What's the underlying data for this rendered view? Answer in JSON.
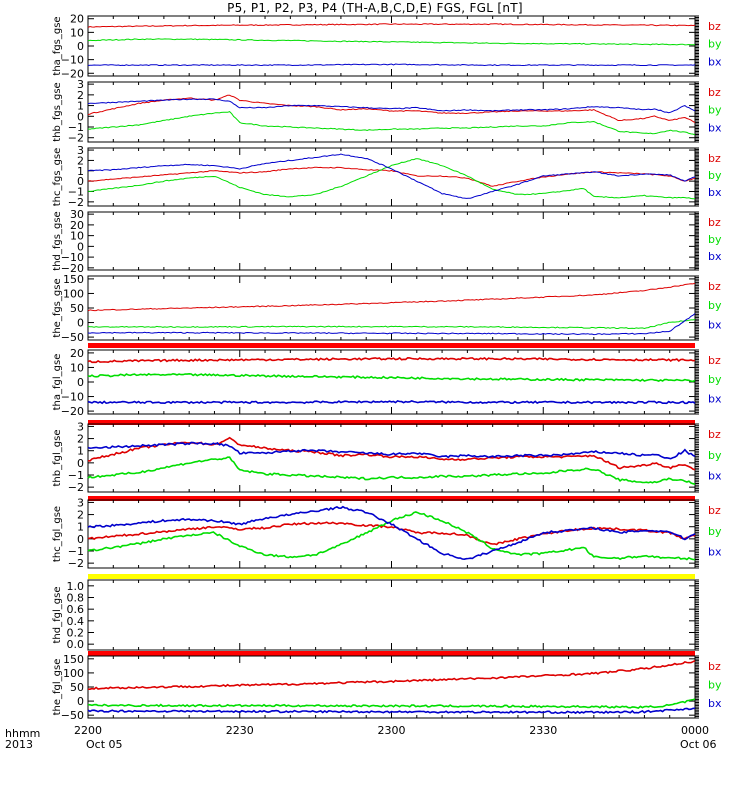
{
  "title": "P5, P1, P2, P3, P4 (TH-A,B,C,D,E) FGS, FGL [nT]",
  "footer": {
    "row1_label": "hhmm",
    "row2_label": "2013",
    "date_start": "Oct 05",
    "date_end": "Oct 06"
  },
  "colors": {
    "bx": "#0000cc",
    "by": "#00dd00",
    "bz": "#dd0000",
    "bar_red": "#ff0000",
    "bar_yellow": "#ffff00"
  },
  "chart_data": {
    "type": "line",
    "x_tick_labels": [
      "2200",
      "2230",
      "2300",
      "2330",
      "0000"
    ],
    "xlim": [
      "2013-10-05 22:00",
      "2013-10-06 00:00"
    ],
    "panels": [
      {
        "ylabel": "tha_fgs_gse",
        "ylim": [
          -22,
          22
        ],
        "ytick_labels": [
          "20",
          "10",
          "0",
          "−10",
          "−20"
        ],
        "ytick_values": [
          20,
          10,
          0,
          -10,
          -20
        ],
        "legend": [
          "bz",
          "by",
          "bx"
        ],
        "x": [
          0,
          10,
          20,
          40,
          60,
          80,
          100,
          120
        ],
        "series": [
          {
            "name": "bz",
            "color": "#dd0000",
            "values": [
              14,
              14.5,
              15,
              15.5,
              16,
              16,
              15.5,
              15
            ]
          },
          {
            "name": "by",
            "color": "#00dd00",
            "values": [
              4,
              5,
              5,
              4,
              3,
              2,
              1.5,
              1
            ]
          },
          {
            "name": "bx",
            "color": "#0000cc",
            "values": [
              -14,
              -14,
              -14,
              -14,
              -13.5,
              -14,
              -14,
              -14
            ]
          }
        ]
      },
      {
        "ylabel": "thb_fgs_gse",
        "ylim": [
          -2.4,
          3.2
        ],
        "ytick_labels": [
          "3",
          "2",
          "1",
          "0",
          "−1",
          "−2"
        ],
        "ytick_values": [
          3,
          2,
          1,
          0,
          -1,
          -2
        ],
        "legend": [
          "bz",
          "by",
          "bx"
        ],
        "x": [
          0,
          5,
          10,
          15,
          20,
          25,
          28,
          30,
          35,
          40,
          45,
          50,
          55,
          60,
          65,
          70,
          75,
          80,
          85,
          90,
          95,
          100,
          105,
          110,
          112,
          115,
          118,
          120
        ],
        "series": [
          {
            "name": "bz",
            "color": "#dd0000",
            "values": [
              0.2,
              0.7,
              1.2,
              1.5,
              1.7,
              1.5,
              2.0,
              1.5,
              1.2,
              1.0,
              0.9,
              0.6,
              0.7,
              0.5,
              0.5,
              0.3,
              0.3,
              0.4,
              0.5,
              0.5,
              0.5,
              0.6,
              -0.4,
              -0.2,
              0.0,
              -0.4,
              -0.1,
              -0.6
            ]
          },
          {
            "name": "by",
            "color": "#00dd00",
            "values": [
              -1.2,
              -1.0,
              -0.8,
              -0.4,
              0,
              0.3,
              0.4,
              -0.6,
              -0.9,
              -1.0,
              -1.1,
              -1.2,
              -1.3,
              -1.2,
              -1.2,
              -1.1,
              -1.1,
              -1.0,
              -0.9,
              -0.9,
              -0.6,
              -0.5,
              -1.4,
              -1.6,
              -1.6,
              -1.3,
              -1.5,
              -1.7
            ]
          },
          {
            "name": "bx",
            "color": "#0000cc",
            "values": [
              1.2,
              1.3,
              1.4,
              1.5,
              1.6,
              1.6,
              1.4,
              0.8,
              0.8,
              1.0,
              1.0,
              0.9,
              0.8,
              0.7,
              0.8,
              0.5,
              0.6,
              0.5,
              0.6,
              0.6,
              0.7,
              0.9,
              0.8,
              0.6,
              0.7,
              0.3,
              1.0,
              0.5
            ]
          }
        ]
      },
      {
        "ylabel": "thc_fgs_gse",
        "ylim": [
          -2.4,
          3.2
        ],
        "ytick_labels": [
          "3",
          "2",
          "1",
          "0",
          "−1",
          "−2"
        ],
        "ytick_values": [
          3,
          2,
          1,
          0,
          -1,
          -2
        ],
        "legend": [
          "bz",
          "by",
          "bx"
        ],
        "x": [
          0,
          5,
          10,
          15,
          20,
          25,
          30,
          35,
          40,
          45,
          50,
          55,
          60,
          65,
          70,
          75,
          80,
          85,
          90,
          95,
          98,
          100,
          105,
          110,
          115,
          118,
          120
        ],
        "series": [
          {
            "name": "bz",
            "color": "#dd0000",
            "values": [
              0.0,
              0.2,
              0.4,
              0.6,
              0.8,
              1.0,
              0.8,
              0.9,
              1.2,
              1.3,
              1.3,
              1.1,
              1.0,
              0.5,
              0.5,
              0.3,
              -0.5,
              0.0,
              0.4,
              0.7,
              0.8,
              0.9,
              0.8,
              0.7,
              0.5,
              0.0,
              0.3
            ]
          },
          {
            "name": "by",
            "color": "#00dd00",
            "values": [
              -1.0,
              -0.7,
              -0.4,
              0.0,
              0.3,
              0.5,
              -0.6,
              -1.3,
              -1.5,
              -1.3,
              -0.5,
              0.5,
              1.5,
              2.2,
              1.5,
              0.5,
              -0.8,
              -1.3,
              -1.2,
              -0.9,
              -0.7,
              -1.5,
              -1.6,
              -1.4,
              -1.6,
              -1.6,
              -1.7
            ]
          },
          {
            "name": "bx",
            "color": "#0000cc",
            "values": [
              1.0,
              1.1,
              1.3,
              1.5,
              1.6,
              1.5,
              1.2,
              1.7,
              2.0,
              2.3,
              2.6,
              2.2,
              1.2,
              0.0,
              -1.2,
              -1.7,
              -1.0,
              -0.3,
              0.5,
              0.7,
              0.8,
              0.9,
              0.5,
              0.7,
              0.6,
              0.0,
              0.4
            ]
          }
        ]
      },
      {
        "ylabel": "thd_fgs_gse",
        "ylim": [
          -22,
          32
        ],
        "ytick_labels": [
          "30",
          "20",
          "10",
          "0",
          "−10",
          "−20"
        ],
        "ytick_values": [
          30,
          20,
          10,
          0,
          -10,
          -20
        ],
        "legend": [
          "bz",
          "by",
          "bx"
        ],
        "x": [],
        "series": []
      },
      {
        "ylabel": "the_fgs_gse",
        "ylim": [
          -60,
          160
        ],
        "ytick_labels": [
          "150",
          "100",
          "50",
          "0",
          "−50"
        ],
        "ytick_values": [
          150,
          100,
          50,
          0,
          -50
        ],
        "legend": [
          "bz",
          "by",
          "bx"
        ],
        "x": [
          0,
          20,
          40,
          60,
          80,
          100,
          110,
          115,
          120
        ],
        "series": [
          {
            "name": "bz",
            "color": "#dd0000",
            "values": [
              42,
              50,
              58,
              68,
              80,
              95,
              110,
              122,
              135
            ]
          },
          {
            "name": "by",
            "color": "#00dd00",
            "values": [
              -15,
              -15,
              -14,
              -14,
              -15,
              -18,
              -20,
              0,
              10
            ]
          },
          {
            "name": "bx",
            "color": "#0000cc",
            "values": [
              -35,
              -35,
              -36,
              -37,
              -38,
              -40,
              -38,
              -30,
              30
            ]
          }
        ]
      },
      {
        "ylabel": "tha_fgl_gse",
        "ylim": [
          -22,
          22
        ],
        "ytick_labels": [
          "20",
          "10",
          "0",
          "−10",
          "−20"
        ],
        "ytick_values": [
          20,
          10,
          0,
          -10,
          -20
        ],
        "legend": [
          "bz",
          "by",
          "bx"
        ],
        "x": [
          0,
          10,
          20,
          40,
          60,
          80,
          100,
          120
        ],
        "series": [
          {
            "name": "bz",
            "color": "#dd0000",
            "values": [
              14,
              14.5,
              15,
              15.5,
              16,
              16,
              15.5,
              15
            ]
          },
          {
            "name": "by",
            "color": "#00dd00",
            "values": [
              4,
              5,
              5,
              4,
              3,
              2,
              1.5,
              1
            ]
          },
          {
            "name": "bx",
            "color": "#0000cc",
            "values": [
              -14,
              -14,
              -14,
              -14,
              -13.5,
              -14,
              -14,
              -14
            ]
          }
        ]
      },
      {
        "ylabel": "thb_fgl_gse",
        "ylim": [
          -2.4,
          3.2
        ],
        "ytick_labels": [
          "3",
          "2",
          "1",
          "0",
          "−1",
          "−2"
        ],
        "ytick_values": [
          3,
          2,
          1,
          0,
          -1,
          -2
        ],
        "legend": [
          "bz",
          "by",
          "bx"
        ],
        "x": [
          0,
          5,
          10,
          15,
          20,
          25,
          28,
          30,
          35,
          40,
          45,
          50,
          55,
          60,
          65,
          70,
          75,
          80,
          85,
          90,
          95,
          100,
          105,
          110,
          112,
          115,
          118,
          120
        ],
        "series": [
          {
            "name": "bz",
            "color": "#dd0000",
            "values": [
              0.2,
              0.7,
              1.2,
              1.5,
              1.7,
              1.5,
              2.0,
              1.5,
              1.2,
              1.0,
              0.9,
              0.6,
              0.7,
              0.5,
              0.5,
              0.3,
              0.3,
              0.4,
              0.5,
              0.5,
              0.5,
              0.6,
              -0.4,
              -0.2,
              0.0,
              -0.4,
              -0.1,
              -0.6
            ]
          },
          {
            "name": "by",
            "color": "#00dd00",
            "values": [
              -1.2,
              -1.0,
              -0.8,
              -0.4,
              0,
              0.3,
              0.4,
              -0.6,
              -0.9,
              -1.0,
              -1.1,
              -1.2,
              -1.3,
              -1.2,
              -1.2,
              -1.1,
              -1.1,
              -1.0,
              -0.9,
              -0.9,
              -0.6,
              -0.5,
              -1.4,
              -1.6,
              -1.6,
              -1.3,
              -1.5,
              -1.7
            ]
          },
          {
            "name": "bx",
            "color": "#0000cc",
            "values": [
              1.2,
              1.3,
              1.4,
              1.5,
              1.6,
              1.6,
              1.4,
              0.8,
              0.8,
              1.0,
              1.0,
              0.9,
              0.8,
              0.7,
              0.8,
              0.5,
              0.6,
              0.5,
              0.6,
              0.6,
              0.7,
              0.9,
              0.8,
              0.6,
              0.7,
              0.3,
              1.0,
              0.5
            ]
          }
        ]
      },
      {
        "ylabel": "thc_fgl_gse",
        "ylim": [
          -2.4,
          3.2
        ],
        "ytick_labels": [
          "3",
          "2",
          "1",
          "0",
          "−1",
          "−2"
        ],
        "ytick_values": [
          3,
          2,
          1,
          0,
          -1,
          -2
        ],
        "legend": [
          "bz",
          "by",
          "bx"
        ],
        "x": [
          0,
          5,
          10,
          15,
          20,
          25,
          30,
          35,
          40,
          45,
          50,
          55,
          60,
          65,
          70,
          75,
          80,
          85,
          90,
          95,
          98,
          100,
          105,
          110,
          115,
          118,
          120
        ],
        "series": [
          {
            "name": "bz",
            "color": "#dd0000",
            "values": [
              0.0,
              0.2,
              0.4,
              0.6,
              0.8,
              1.0,
              0.8,
              0.9,
              1.2,
              1.3,
              1.3,
              1.1,
              1.0,
              0.5,
              0.5,
              0.3,
              -0.5,
              0.0,
              0.4,
              0.7,
              0.8,
              0.9,
              0.8,
              0.7,
              0.5,
              0.0,
              0.3
            ]
          },
          {
            "name": "by",
            "color": "#00dd00",
            "values": [
              -1.0,
              -0.7,
              -0.4,
              0.0,
              0.3,
              0.5,
              -0.6,
              -1.3,
              -1.5,
              -1.3,
              -0.5,
              0.5,
              1.5,
              2.2,
              1.5,
              0.5,
              -0.8,
              -1.3,
              -1.2,
              -0.9,
              -0.7,
              -1.5,
              -1.6,
              -1.4,
              -1.6,
              -1.6,
              -1.7
            ]
          },
          {
            "name": "bx",
            "color": "#0000cc",
            "values": [
              1.0,
              1.1,
              1.3,
              1.5,
              1.6,
              1.5,
              1.2,
              1.7,
              2.0,
              2.3,
              2.6,
              2.2,
              1.2,
              0.0,
              -1.2,
              -1.7,
              -1.0,
              -0.3,
              0.5,
              0.7,
              0.8,
              0.9,
              0.5,
              0.7,
              0.6,
              0.0,
              0.4
            ]
          }
        ]
      },
      {
        "ylabel": "thd_fgl_gse",
        "ylim": [
          -0.1,
          1.1
        ],
        "ytick_labels": [
          "1.0",
          "0.8",
          "0.6",
          "0.4",
          "0.2",
          "0.0"
        ],
        "ytick_values": [
          1.0,
          0.8,
          0.6,
          0.4,
          0.2,
          0.0
        ],
        "legend": [],
        "x": [],
        "series": []
      },
      {
        "ylabel": "the_fgl_gse",
        "ylim": [
          -60,
          160
        ],
        "ytick_labels": [
          "150",
          "100",
          "50",
          "0",
          "−50"
        ],
        "ytick_values": [
          150,
          100,
          50,
          0,
          -50
        ],
        "legend": [
          "bz",
          "by",
          "bx"
        ],
        "x": [
          0,
          20,
          40,
          60,
          80,
          100,
          110,
          115,
          120
        ],
        "series": [
          {
            "name": "bz",
            "color": "#dd0000",
            "values": [
              45,
              52,
              60,
              70,
              82,
              98,
              115,
              128,
              142
            ]
          },
          {
            "name": "by",
            "color": "#00dd00",
            "values": [
              -15,
              -16,
              -16,
              -17,
              -18,
              -20,
              -22,
              -15,
              5
            ]
          },
          {
            "name": "bx",
            "color": "#0000cc",
            "values": [
              -35,
              -36,
              -37,
              -38,
              -39,
              -40,
              -38,
              -32,
              -25
            ]
          }
        ]
      }
    ]
  }
}
